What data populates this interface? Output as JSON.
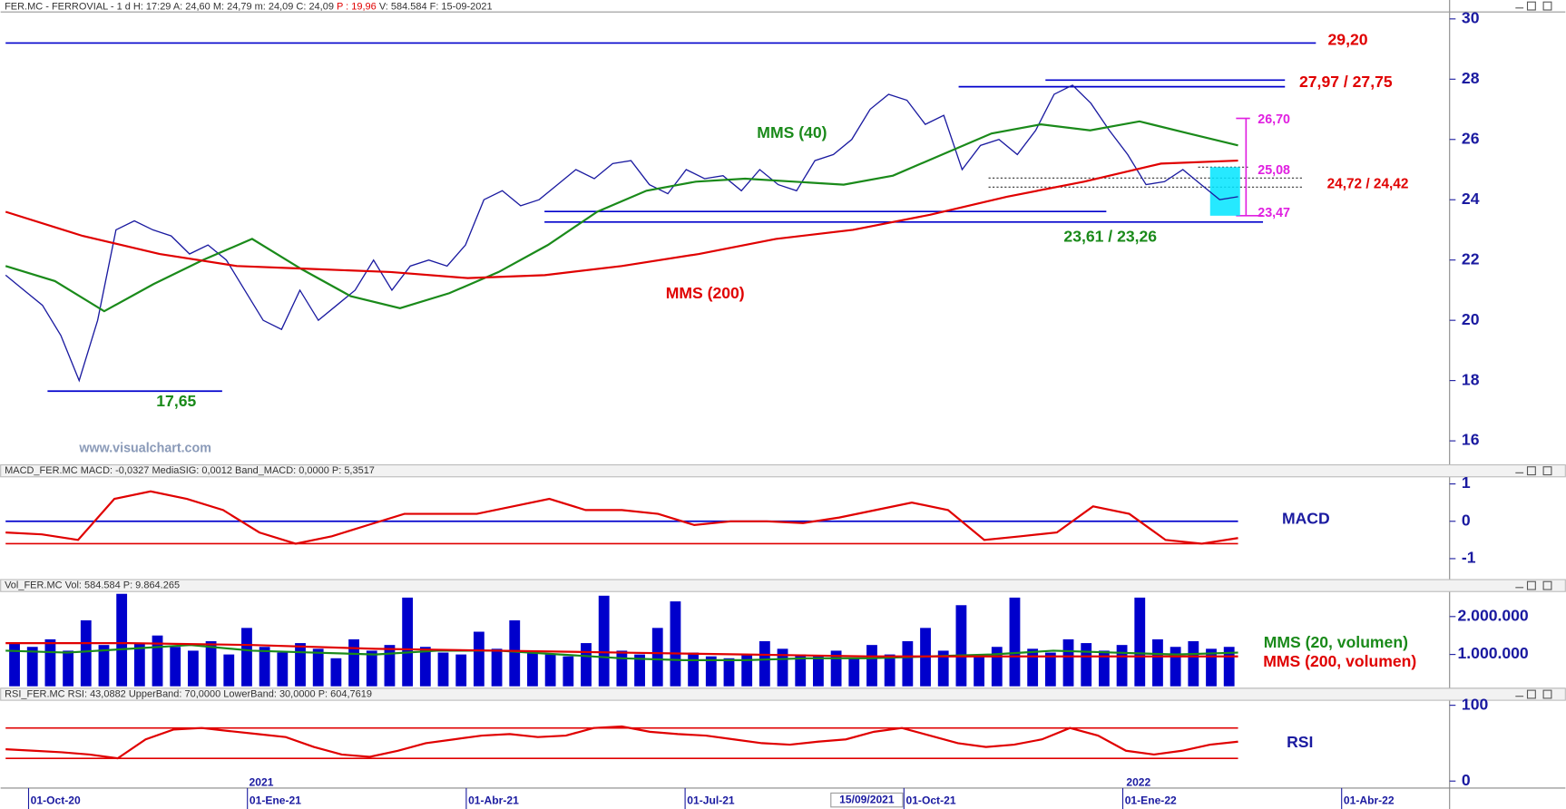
{
  "chart_data": [
    {
      "type": "line",
      "header": "FER.MC - FERROVIAL -  1 d  H: 17:29  A: 24,60  M: 24,79  m: 24,09  C: 24,09 ",
      "header_p": "P : 19,96",
      "header_rest": "  V: 584.584  F: 15-09-2021",
      "ylim": [
        15.27,
        30.23
      ],
      "yticks": [
        16,
        18,
        20,
        22,
        24,
        26,
        28,
        30
      ],
      "series": [
        {
          "color": "#1a1aa0",
          "values": [
            21.5,
            21,
            20.5,
            19.5,
            18,
            20,
            23,
            23.3,
            23,
            22.8,
            22.2,
            22.5,
            22,
            21,
            20,
            19.7,
            21,
            20,
            20.5,
            21,
            22,
            21,
            21.8,
            22,
            21.8,
            22.5,
            24,
            24.3,
            23.8,
            24,
            24.5,
            25,
            24.7,
            25.2,
            25.3,
            24.5,
            24.2,
            25,
            24.7,
            24.8,
            24.3,
            25,
            24.5,
            24.3,
            25.3,
            25.5,
            26,
            27,
            27.5,
            27.3,
            26.5,
            26.8,
            25,
            25.8,
            26,
            25.5,
            26.3,
            27.5,
            27.8,
            27.2,
            26.3,
            25.5,
            24.5,
            24.6,
            25,
            24.5,
            24,
            24.1
          ]
        },
        {
          "name": "MMS (40)",
          "color": "#1a8a1a",
          "values": [
            21.8,
            21.3,
            20.3,
            21.2,
            22,
            22.7,
            21.7,
            20.8,
            20.4,
            20.9,
            21.6,
            22.5,
            23.6,
            24.3,
            24.6,
            24.7,
            24.6,
            24.5,
            24.8,
            25.5,
            26.2,
            26.5,
            26.3,
            26.6,
            26.2,
            25.8
          ]
        },
        {
          "name": "MMS (200)",
          "color": "#e00000",
          "values": [
            23.6,
            22.8,
            22.2,
            21.8,
            21.7,
            21.6,
            21.4,
            21.5,
            21.8,
            22.2,
            22.7,
            23,
            23.5,
            24.1,
            24.6,
            25.2,
            25.3
          ]
        }
      ],
      "levels": [
        {
          "values": [
            29.2
          ],
          "label": "29,20",
          "line_color": "#0000cc",
          "label_color": "#e00000",
          "style": "solid"
        },
        {
          "values": [
            27.97,
            27.75
          ],
          "label": "27,97 / 27,75",
          "line_color": "#0000cc",
          "label_color": "#e00000",
          "style": "solid"
        },
        {
          "values": [
            23.61,
            23.26
          ],
          "label": "23,61 / 23,26",
          "line_color": "#0000cc",
          "label_color": "#1a8a1a",
          "style": "solid"
        },
        {
          "values": [
            17.65
          ],
          "label": "17,65",
          "line_color": "#0000cc",
          "label_color": "#1a8a1a",
          "style": "solid"
        },
        {
          "values": [
            24.72,
            24.42
          ],
          "label": "24,72 / 24,42",
          "line_color": "#333333",
          "label_color": "#e00000",
          "style": "dotted"
        },
        {
          "values": [
            26.7
          ],
          "label": "26,70",
          "line_color": "#e020e0",
          "label_color": "#e020e0",
          "style": "solid"
        },
        {
          "values": [
            25.08
          ],
          "label": "25,08",
          "line_color": "#333333",
          "label_color": "#e020e0",
          "style": "dotted"
        },
        {
          "values": [
            23.47
          ],
          "label": "23,47",
          "line_color": "#e020e0",
          "label_color": "#e020e0",
          "style": "solid"
        }
      ],
      "annotations": [
        "www.visualchart.com"
      ]
    },
    {
      "type": "line",
      "header": "MACD_FER.MC  MACD: -0,0327  MediaSIG: 0,0012  Band_MACD: 0,0000  P: 5,3517",
      "ylim": [
        -1.48,
        1.19
      ],
      "yticks": [
        -1,
        0,
        1
      ],
      "series": [
        {
          "color": "#e00000",
          "values": [
            -0.3,
            -0.35,
            -0.5,
            0.6,
            0.8,
            0.6,
            0.3,
            -0.3,
            -0.6,
            -0.4,
            -0.1,
            0.2,
            0.2,
            0.2,
            0.4,
            0.6,
            0.3,
            0.3,
            0.2,
            -0.1,
            0,
            0,
            -0.05,
            0.1,
            0.3,
            0.5,
            0.3,
            -0.5,
            -0.4,
            -0.3,
            0.4,
            0.2,
            -0.5,
            -0.6,
            -0.45
          ]
        }
      ],
      "levels": [
        {
          "values": [
            0
          ],
          "line_color": "#0000cc",
          "style": "solid"
        },
        {
          "values": [
            -0.6
          ],
          "line_color": "#e00000",
          "style": "solid"
        }
      ],
      "annotations": [
        "MACD"
      ]
    },
    {
      "type": "bar",
      "header": "Vol_FER.MC  Vol: 584.584  P: 9.864.265",
      "ylim": [
        160000,
        2660000
      ],
      "yticks": [
        {
          "value": 1000000,
          "label": "1.000.000"
        },
        {
          "value": 2000000,
          "label": "2.000.000"
        }
      ],
      "color": "#0000cc",
      "values": [
        1300000,
        1200000,
        1400000,
        1100000,
        1900000,
        1250000,
        2600000,
        1300000,
        1500000,
        1200000,
        1100000,
        1350000,
        1000000,
        1700000,
        1200000,
        1050000,
        1300000,
        1150000,
        900000,
        1400000,
        1100000,
        1250000,
        2500000,
        1200000,
        1050000,
        1000000,
        1600000,
        1150000,
        1900000,
        1100000,
        1000000,
        950000,
        1300000,
        2550000,
        1100000,
        1000000,
        1700000,
        2400000,
        1050000,
        950000,
        900000,
        1000000,
        1350000,
        1150000,
        1000000,
        950000,
        1100000,
        900000,
        1250000,
        1000000,
        1350000,
        1700000,
        1100000,
        2300000,
        1000000,
        1200000,
        2500000,
        1150000,
        1050000,
        1400000,
        1300000,
        1100000,
        1250000,
        2500000,
        1400000,
        1200000,
        1350000,
        1150000,
        1200000
      ],
      "series": [
        {
          "name": "MMS (20, volumen)",
          "color": "#1a8a1a",
          "values": [
            1100000,
            1050000,
            1150000,
            1250000,
            1100000,
            1050000,
            1000000,
            1100000,
            1100000,
            1000000,
            900000,
            850000,
            850000,
            900000,
            900000,
            950000,
            1000000,
            1100000,
            1050000,
            1000000,
            1050000
          ]
        },
        {
          "name": "MMS (200, volumen)",
          "color": "#e00000",
          "values": [
            1300000,
            1300000,
            1250000,
            1150000,
            1100000,
            1050000,
            1000000,
            950000,
            950000,
            950000,
            950000
          ]
        }
      ]
    },
    {
      "type": "line",
      "header": "RSI_FER.MC  RSI: 43,0882  UpperBand: 70,0000  LowerBand: 30,0000  P: 604,7619",
      "ylim": [
        -9.2,
        106.6
      ],
      "yticks": [
        0,
        100
      ],
      "series": [
        {
          "color": "#e00000",
          "values": [
            42,
            40,
            38,
            35,
            30,
            55,
            68,
            70,
            66,
            62,
            58,
            45,
            35,
            32,
            40,
            50,
            55,
            60,
            62,
            58,
            60,
            70,
            72,
            65,
            62,
            60,
            55,
            50,
            48,
            52,
            55,
            65,
            70,
            60,
            50,
            45,
            48,
            55,
            70,
            60,
            40,
            35,
            40,
            48,
            52
          ]
        }
      ],
      "levels": [
        {
          "values": [
            70
          ],
          "line_color": "#e00000",
          "style": "solid"
        },
        {
          "values": [
            30
          ],
          "line_color": "#e00000",
          "style": "solid"
        }
      ],
      "annotations": [
        "RSI"
      ]
    }
  ],
  "time_axis": {
    "labels": [
      "01-Oct-20",
      "01-Ene-21",
      "01-Abr-21",
      "01-Jul-21",
      "01-Oct-21",
      "01-Ene-22",
      "01-Abr-22"
    ],
    "years": [
      "2021",
      "2022"
    ],
    "cursor": "15/09/2021"
  }
}
